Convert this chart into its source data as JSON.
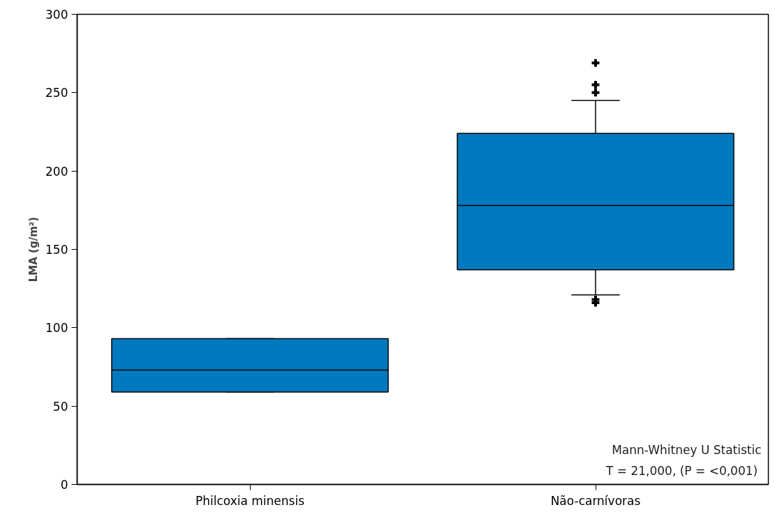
{
  "chart_data": {
    "type": "box",
    "ylabel": "LMA (g/m²)",
    "categories": [
      "Philcoxia minensis",
      "Não-carnívoras"
    ],
    "boxes": [
      {
        "low": 59,
        "q1": 59,
        "median": 73,
        "q3": 93,
        "high": 93
      },
      {
        "low": 121,
        "q1": 137,
        "median": 178,
        "q3": 224,
        "high": 245,
        "outliers": [
          269,
          255,
          250,
          118,
          116
        ]
      }
    ],
    "color": "#0079bf",
    "ylim": [
      0,
      300
    ],
    "yticks": [
      0,
      50,
      100,
      150,
      200,
      250,
      300
    ],
    "grid": false,
    "marker": "cross",
    "annotations": [
      "Mann-Whitney U Statistic",
      "T = 21,000,  (P = <0,001)"
    ]
  }
}
